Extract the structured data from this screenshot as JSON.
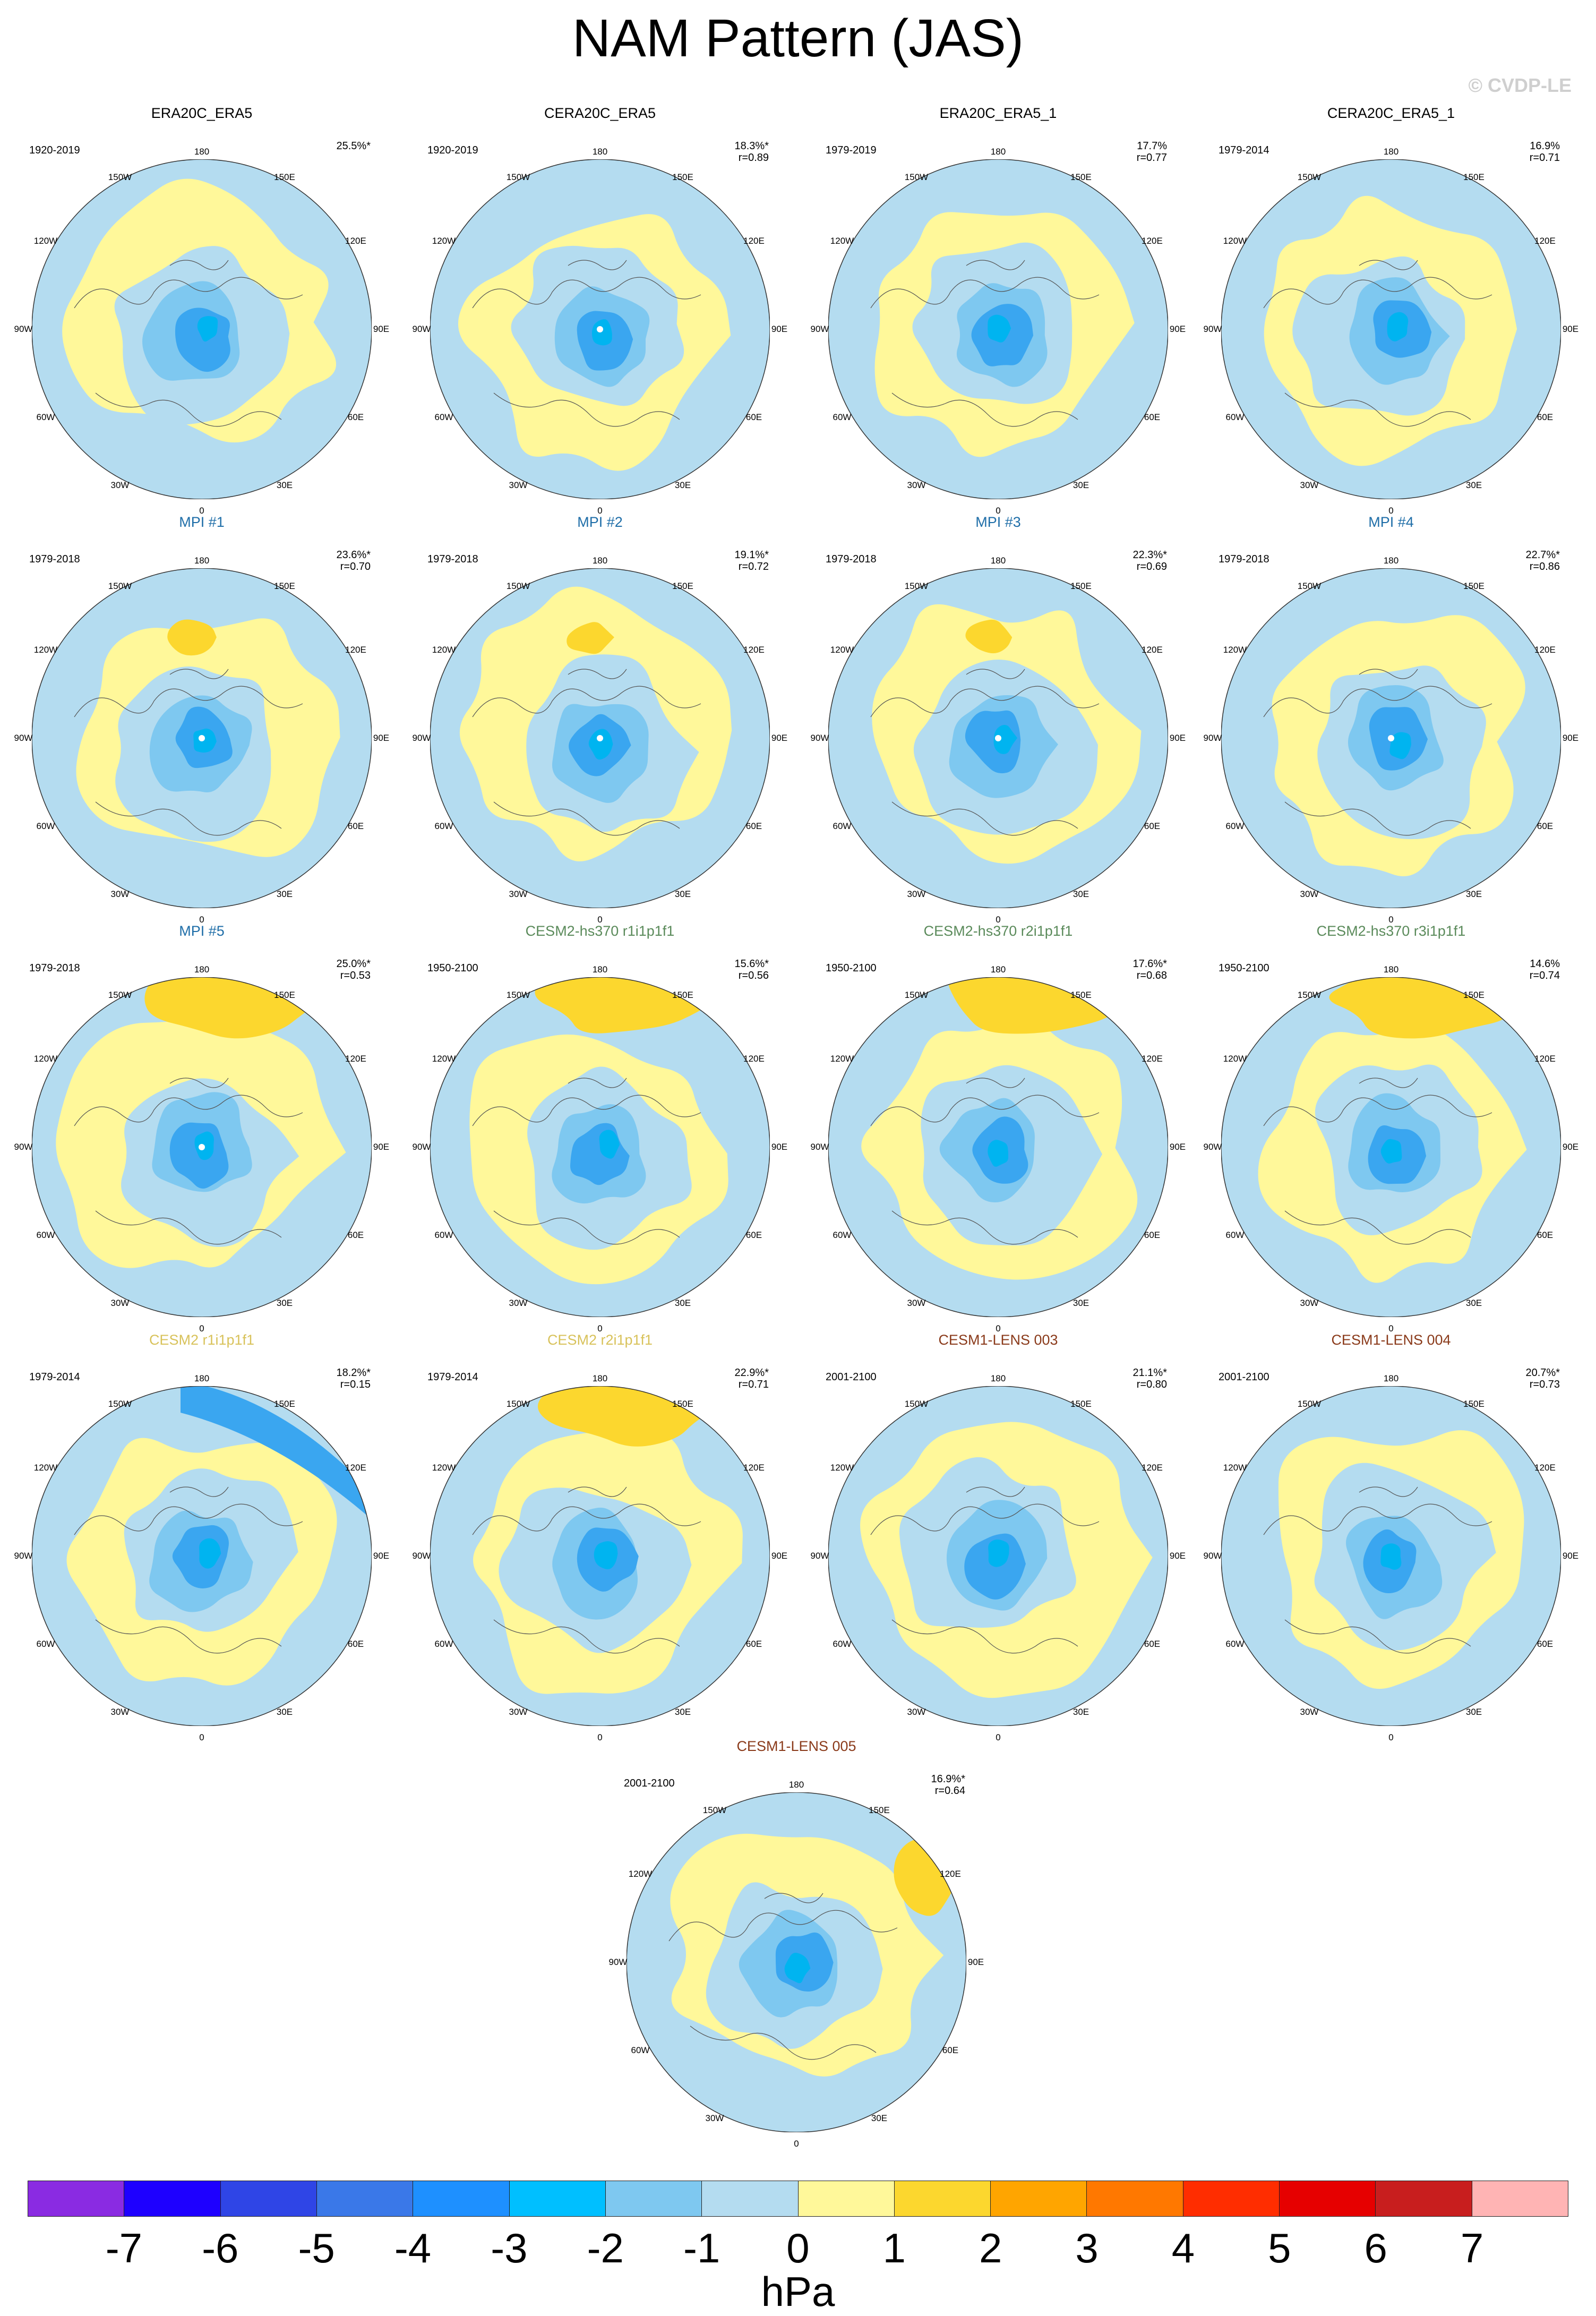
{
  "title": "NAM Pattern (JAS)",
  "credit": "© CVDP-LE",
  "lon_labels": {
    "top": "180",
    "bottom": "0",
    "upper_left": "150W",
    "upper_right": "150E",
    "mid_upper_left": "120W",
    "mid_upper_right": "120E",
    "left": "90W",
    "right": "90E",
    "mid_lower_left": "60W",
    "mid_lower_right": "60E",
    "lower_left": "30W",
    "lower_right": "30E"
  },
  "colors": {
    "light_blue": "#b4dcf0",
    "blue_2": "#7ec8f0",
    "blue_3": "#3aa6f0",
    "blue_4": "#1f8ff0",
    "light_yellow": "#fff89a",
    "yellow_2": "#fcd72e",
    "cyan": "#00b4f0"
  },
  "panels": [
    {
      "title": "ERA20C_ERA5",
      "title_color": "#000000",
      "years": "1920-2019",
      "pct": "25.5%*",
      "r": "",
      "anomaly": "blue"
    },
    {
      "title": "CERA20C_ERA5",
      "title_color": "#000000",
      "years": "1920-2019",
      "pct": "18.3%*",
      "r": "r=0.89",
      "anomaly": "blue"
    },
    {
      "title": "ERA20C_ERA5_1",
      "title_color": "#000000",
      "years": "1979-2019",
      "pct": "17.7%",
      "r": "r=0.77",
      "anomaly": "blue"
    },
    {
      "title": "CERA20C_ERA5_1",
      "title_color": "#000000",
      "years": "1979-2014",
      "pct": "16.9%",
      "r": "r=0.71",
      "anomaly": "blue"
    },
    {
      "title": "MPI #1",
      "title_color": "#1f6ea8",
      "years": "1979-2018",
      "pct": "23.6%*",
      "r": "r=0.70",
      "anomaly": "blue"
    },
    {
      "title": "MPI #2",
      "title_color": "#1f6ea8",
      "years": "1979-2018",
      "pct": "19.1%*",
      "r": "r=0.72",
      "anomaly": "blue"
    },
    {
      "title": "MPI #3",
      "title_color": "#1f6ea8",
      "years": "1979-2018",
      "pct": "22.3%*",
      "r": "r=0.69",
      "anomaly": "blue"
    },
    {
      "title": "MPI #4",
      "title_color": "#1f6ea8",
      "years": "1979-2018",
      "pct": "22.7%*",
      "r": "r=0.86",
      "anomaly": "blue"
    },
    {
      "title": "MPI #5",
      "title_color": "#1f6ea8",
      "years": "1979-2018",
      "pct": "25.0%*",
      "r": "r=0.53",
      "anomaly": "blue"
    },
    {
      "title": "CESM2-hs370 r1i1p1f1",
      "title_color": "#5a8a5a",
      "years": "1950-2100",
      "pct": "15.6%*",
      "r": "r=0.56",
      "anomaly": "blue"
    },
    {
      "title": "CESM2-hs370 r2i1p1f1",
      "title_color": "#5a8a5a",
      "years": "1950-2100",
      "pct": "17.6%*",
      "r": "r=0.68",
      "anomaly": "blue"
    },
    {
      "title": "CESM2-hs370 r3i1p1f1",
      "title_color": "#5a8a5a",
      "years": "1950-2100",
      "pct": "14.6%",
      "r": "r=0.74",
      "anomaly": "blue"
    },
    {
      "title": "CESM2 r1i1p1f1",
      "title_color": "#d8c25a",
      "years": "1979-2014",
      "pct": "18.2%*",
      "r": "r=0.15",
      "anomaly": "blue"
    },
    {
      "title": "CESM2 r2i1p1f1",
      "title_color": "#d8c25a",
      "years": "1979-2014",
      "pct": "22.9%*",
      "r": "r=0.71",
      "anomaly": "blue"
    },
    {
      "title": "CESM1-LENS 003",
      "title_color": "#8a3a1a",
      "years": "2001-2100",
      "pct": "21.1%*",
      "r": "r=0.80",
      "anomaly": "blue"
    },
    {
      "title": "CESM1-LENS 004",
      "title_color": "#8a3a1a",
      "years": "2001-2100",
      "pct": "20.7%*",
      "r": "r=0.73",
      "anomaly": "blue"
    },
    {
      "title": "CESM1-LENS 005",
      "title_color": "#8a3a1a",
      "years": "2001-2100",
      "pct": "16.9%*",
      "r": "r=0.64",
      "anomaly": "blue"
    }
  ],
  "colorbar": {
    "colors": [
      "#8a2be2",
      "#1e00ff",
      "#2f45e6",
      "#3a78e8",
      "#1e90ff",
      "#00bfff",
      "#7ec8f0",
      "#b4dcf0",
      "#fff89a",
      "#fcd72e",
      "#ffa500",
      "#ff7800",
      "#ff2d00",
      "#e60000",
      "#c81e1e",
      "#ffb4b4"
    ],
    "ticks": [
      "-7",
      "-6",
      "-5",
      "-4",
      "-3",
      "-2",
      "-1",
      "0",
      "1",
      "2",
      "3",
      "4",
      "5",
      "6",
      "7"
    ],
    "units": "hPa"
  }
}
